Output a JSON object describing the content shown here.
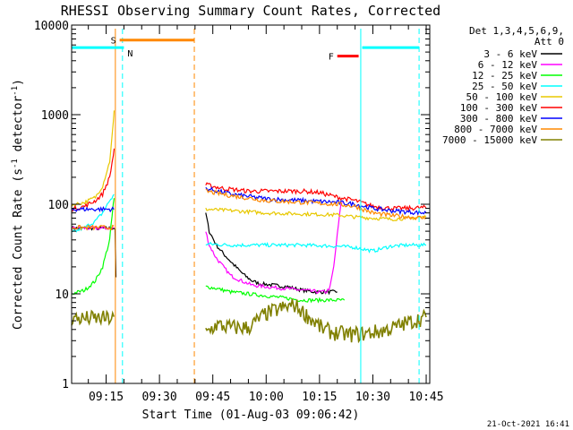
{
  "chart_data": {
    "type": "line",
    "title": "RHESSI Observing Summary Count Rates, Corrected",
    "xlabel": "Start Time (01-Aug-03 09:06:42)",
    "ylabel_main": "Corrected Count Rate (s",
    "ylabel_sup1": "-1",
    "ylabel_mid": " detector",
    "ylabel_sup2": "-1",
    "ylabel_end": ")",
    "yscale": "log",
    "ylim": [
      1,
      10000
    ],
    "xlim": [
      5.3,
      106.0
    ],
    "y_ticks": [
      {
        "value": 1,
        "label": "1"
      },
      {
        "value": 10,
        "label": "10"
      },
      {
        "value": 100,
        "label": "100"
      },
      {
        "value": 1000,
        "label": "1000"
      },
      {
        "value": 10000,
        "label": "10000"
      }
    ],
    "x_ticks": [
      {
        "value": 15,
        "label": "09:15"
      },
      {
        "value": 30,
        "label": "09:30"
      },
      {
        "value": 45,
        "label": "09:45"
      },
      {
        "value": 60,
        "label": "10:00"
      },
      {
        "value": 75,
        "label": "10:15"
      },
      {
        "value": 90,
        "label": "10:30"
      },
      {
        "value": 105,
        "label": "10:45"
      }
    ],
    "legend_header": [
      "Det 1,3,4,5,6,9,",
      "Att 0"
    ],
    "series": [
      {
        "name": "3 - 6 keV",
        "color": "#000000",
        "x": [
          5.3,
          14,
          17.5,
          18,
          43,
          44,
          46,
          48,
          50,
          52,
          54,
          56,
          58,
          62,
          66,
          70,
          74,
          76,
          78,
          80
        ],
        "y": [
          54,
          54,
          54,
          4,
          80,
          50,
          35,
          28,
          23,
          19,
          16,
          14,
          13,
          12.5,
          12,
          11,
          10.5,
          10.5,
          10.5,
          10.5
        ]
      },
      {
        "name": "6 - 12 keV",
        "color": "#ff00ff",
        "x": [
          5.3,
          14,
          17.5,
          43,
          44,
          46,
          48,
          50,
          53,
          56,
          60,
          65,
          70,
          75,
          77,
          78,
          79,
          80,
          81,
          81.5
        ],
        "y": [
          54,
          54,
          54,
          50,
          35,
          25,
          20,
          16,
          14,
          12.5,
          12,
          11.5,
          11,
          10.5,
          10.5,
          12,
          20,
          45,
          100,
          105
        ]
      },
      {
        "name": "12 - 25 keV",
        "color": "#00ff00",
        "x": [
          5.3,
          9,
          12,
          14,
          16,
          17,
          17.5,
          43,
          46,
          50,
          55,
          60,
          65,
          70,
          75,
          80,
          82
        ],
        "y": [
          10,
          11,
          14,
          20,
          40,
          100,
          130,
          12,
          11.5,
          10.5,
          10,
          9.5,
          9,
          8.5,
          8.5,
          8.5,
          8.5
        ]
      },
      {
        "name": "25 - 50 keV",
        "color": "#00ffff",
        "x": [
          5.3,
          9,
          12,
          14,
          16,
          17.5,
          43,
          50,
          60,
          70,
          80,
          85,
          90,
          95,
          100,
          105
        ],
        "y": [
          48,
          55,
          65,
          80,
          110,
          130,
          36,
          35,
          35,
          35,
          34,
          33,
          30,
          34,
          35,
          35
        ]
      },
      {
        "name": "50 - 100 keV",
        "color": "#e8c800",
        "x": [
          5.3,
          9,
          12,
          14,
          16,
          17,
          17.5,
          43,
          50,
          60,
          70,
          80,
          85,
          90,
          95,
          100,
          105
        ],
        "y": [
          98,
          105,
          120,
          160,
          300,
          800,
          1500,
          88,
          85,
          80,
          78,
          76,
          72,
          70,
          68,
          70,
          72
        ]
      },
      {
        "name": "100 - 300 keV",
        "color": "#ff0000",
        "x": [
          5.3,
          9,
          12,
          14,
          16,
          17,
          17.5,
          43,
          48,
          55,
          60,
          65,
          70,
          75,
          80,
          85,
          90,
          95,
          100,
          105
        ],
        "y": [
          88,
          95,
          110,
          130,
          200,
          350,
          500,
          165,
          150,
          140,
          140,
          140,
          140,
          135,
          120,
          110,
          95,
          90,
          90,
          92
        ]
      },
      {
        "name": "300 - 800 keV",
        "color": "#0000ff",
        "x": [
          5.3,
          17.5,
          43,
          50,
          60,
          70,
          80,
          85,
          90,
          95,
          100,
          105
        ],
        "y": [
          88,
          88,
          150,
          130,
          115,
          110,
          105,
          100,
          90,
          85,
          82,
          80
        ]
      },
      {
        "name": "800 - 7000 keV",
        "color": "#ff8800",
        "x": [
          5.3,
          17.5,
          43,
          50,
          60,
          70,
          80,
          85,
          90,
          95,
          100,
          105
        ],
        "y": [
          55,
          55,
          140,
          125,
          110,
          105,
          100,
          95,
          80,
          75,
          72,
          70
        ]
      },
      {
        "name": "7000 - 15000 keV",
        "color": "#808000",
        "x": [
          5.3,
          17.5,
          43,
          46,
          50,
          55,
          60,
          64,
          68,
          72,
          76,
          80,
          84,
          88,
          92,
          96,
          100,
          105
        ],
        "y": [
          5.3,
          5.3,
          3.6,
          4.5,
          4.2,
          4.2,
          6.0,
          6.8,
          7.5,
          5.5,
          4.0,
          3.6,
          3.5,
          3.6,
          3.8,
          4.2,
          4.8,
          5.5
        ]
      }
    ],
    "state_bars": [
      {
        "label": "S",
        "color": "#ff8800",
        "x0": 18.8,
        "x1": 39.8,
        "y": 6800
      },
      {
        "label": "N",
        "color": "#00ffff",
        "x0": 5.3,
        "x1": 20.0,
        "y": 5600
      },
      {
        "label": "F",
        "color": "#ff0000",
        "x0": 80.0,
        "x1": 86.0,
        "y": 4500
      },
      {
        "label": "",
        "color": "#00ffff",
        "x0": 87.0,
        "x1": 103.0,
        "y": 5600
      }
    ],
    "vertical_markers": [
      {
        "x": 17.6,
        "color": "#ff8800",
        "style": "solid"
      },
      {
        "x": 19.6,
        "color": "#00ffff",
        "style": "dashed"
      },
      {
        "x": 39.8,
        "color": "#ff8800",
        "style": "dashed"
      },
      {
        "x": 86.6,
        "color": "#00ffff",
        "style": "solid"
      },
      {
        "x": 103.0,
        "color": "#00ffff",
        "style": "dashed"
      }
    ],
    "footer_date": "21-Oct-2021 16:41"
  }
}
